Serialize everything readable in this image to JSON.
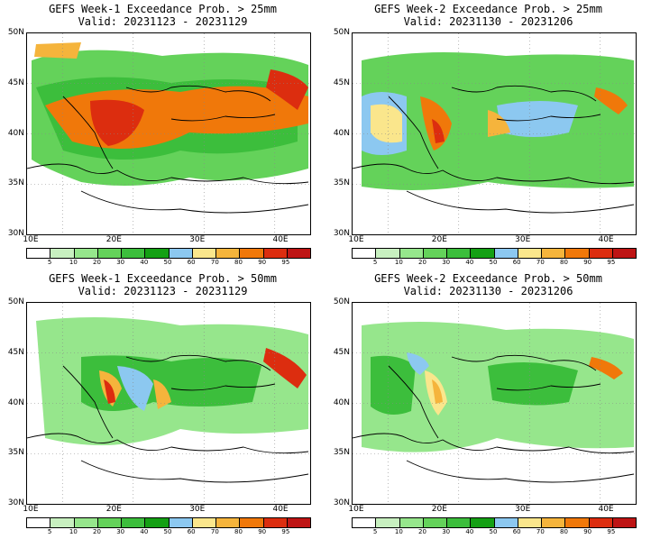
{
  "panels": [
    {
      "title_line1": "GEFS Week-1 Exceedance Prob. > 25mm",
      "title_line2": "Valid: 20231123 - 20231129",
      "id": "w1-25"
    },
    {
      "title_line1": "GEFS Week-2 Exceedance Prob. > 25mm",
      "title_line2": "Valid: 20231130 - 20231206",
      "id": "w2-25"
    },
    {
      "title_line1": "GEFS Week-1 Exceedance Prob. > 50mm",
      "title_line2": "Valid: 20231123 - 20231129",
      "id": "w1-50"
    },
    {
      "title_line1": "GEFS Week-2 Exceedance Prob. > 50mm",
      "title_line2": "Valid: 20231130 - 20231206",
      "id": "w2-50"
    }
  ],
  "axes": {
    "lat_labels": [
      "50N",
      "45N",
      "40N",
      "35N",
      "30N"
    ],
    "lon_labels": [
      "10E",
      "20E",
      "30E",
      "40E"
    ]
  },
  "colorbar": {
    "labels": [
      "5",
      "10",
      "20",
      "30",
      "40",
      "50",
      "60",
      "70",
      "80",
      "90",
      "95"
    ],
    "colors": [
      "#ffffff",
      "#c8f0c0",
      "#96e68c",
      "#64d25a",
      "#3cbe3c",
      "#14a014",
      "#8cc8f0",
      "#fae68c",
      "#f5b43c",
      "#f0780a",
      "#dc2d0f",
      "#be1414"
    ]
  }
}
